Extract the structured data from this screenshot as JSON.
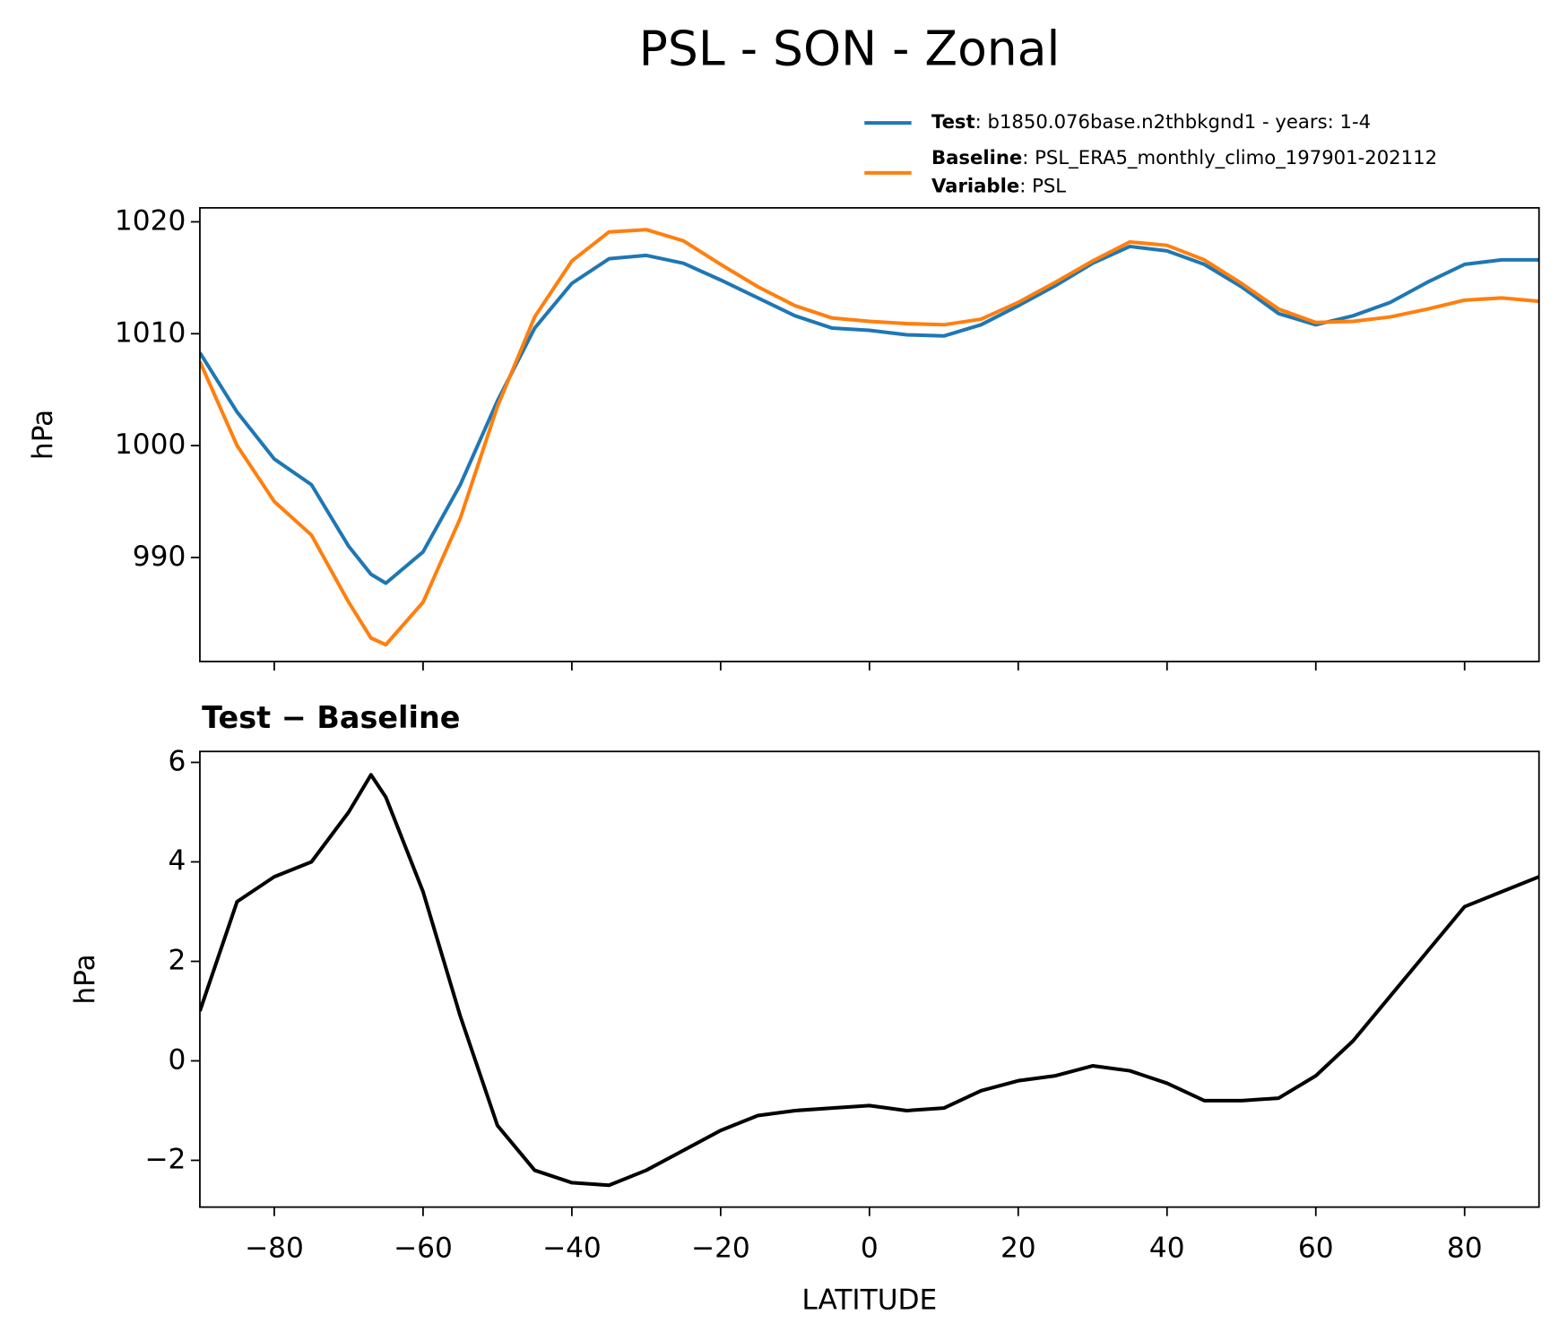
{
  "chart_data": [
    {
      "type": "line",
      "title": "PSL - SON - Zonal",
      "ylabel": "hPa",
      "legend_variable": {
        "name": "Variable",
        "description": ": PSL"
      },
      "x": [
        -90,
        -85,
        -80,
        -75,
        -70,
        -67,
        -65,
        -60,
        -55,
        -50,
        -45,
        -40,
        -35,
        -30,
        -25,
        -20,
        -15,
        -10,
        -5,
        0,
        5,
        10,
        15,
        20,
        25,
        30,
        35,
        40,
        45,
        50,
        55,
        60,
        65,
        70,
        75,
        80,
        85,
        90
      ],
      "series": [
        {
          "name": "Test",
          "description": ": b1850.076base.n2thbkgnd1 - years: 1-4",
          "color": "#1f77b4",
          "values": [
            1008.3,
            1003,
            998.8,
            996.5,
            991,
            988.5,
            987.7,
            990.5,
            996.5,
            1004,
            1010.5,
            1014.5,
            1016.7,
            1017,
            1016.3,
            1014.8,
            1013.2,
            1011.6,
            1010.5,
            1010.3,
            1009.9,
            1009.8,
            1010.8,
            1012.5,
            1014.3,
            1016.3,
            1017.8,
            1017.4,
            1016.2,
            1014.2,
            1011.8,
            1010.8,
            1011.6,
            1012.8,
            1014.6,
            1016.2,
            1016.6,
            1016.6
          ]
        },
        {
          "name": "Baseline",
          "description": ": PSL_ERA5_monthly_climo_197901-202112",
          "color": "#ff7f0e",
          "values": [
            1007.5,
            1000,
            995,
            992,
            986,
            982.8,
            982.2,
            986,
            993.5,
            1003.5,
            1011.5,
            1016.5,
            1019.1,
            1019.3,
            1018.3,
            1016.2,
            1014.2,
            1012.5,
            1011.4,
            1011.1,
            1010.9,
            1010.8,
            1011.3,
            1012.8,
            1014.6,
            1016.5,
            1018.2,
            1017.9,
            1016.6,
            1014.5,
            1012.2,
            1011,
            1011.1,
            1011.5,
            1012.2,
            1013,
            1013.2,
            1012.9
          ]
        }
      ],
      "xlim": [
        -90,
        90
      ],
      "xticks": [
        {
          "value": -80,
          "label": "−80"
        },
        {
          "value": -60,
          "label": "−60"
        },
        {
          "value": -40,
          "label": "−40"
        },
        {
          "value": -20,
          "label": "−20"
        },
        0,
        20,
        40,
        60,
        80
      ],
      "ylim": [
        980.7,
        1021.25
      ],
      "yticks": [
        990,
        1000,
        1010,
        1020
      ]
    },
    {
      "type": "line",
      "title": "Test − Baseline",
      "ylabel": "hPa",
      "xlabel": "LATITUDE",
      "x": [
        -90,
        -85,
        -80,
        -75,
        -70,
        -67,
        -65,
        -60,
        -55,
        -50,
        -45,
        -40,
        -35,
        -30,
        -25,
        -20,
        -15,
        -10,
        -5,
        0,
        5,
        10,
        15,
        20,
        25,
        30,
        35,
        40,
        45,
        50,
        55,
        60,
        65,
        70,
        75,
        80,
        85,
        90
      ],
      "series": [
        {
          "color": "#000000",
          "values": [
            1.0,
            3.2,
            3.7,
            4.0,
            5.0,
            5.75,
            5.3,
            3.4,
            0.9,
            -1.3,
            -2.2,
            -2.45,
            -2.5,
            -2.2,
            -1.8,
            -1.4,
            -1.1,
            -1.0,
            -0.95,
            -0.9,
            -1.0,
            -0.95,
            -0.6,
            -0.4,
            -0.3,
            -0.1,
            -0.2,
            -0.45,
            -0.8,
            -0.8,
            -0.75,
            -0.3,
            0.4,
            1.3,
            2.2,
            3.1,
            3.4,
            3.7
          ]
        }
      ],
      "xlim": [
        -90,
        90
      ],
      "xticks": [
        {
          "value": -80,
          "label": "−80"
        },
        {
          "value": -60,
          "label": "−60"
        },
        {
          "value": -40,
          "label": "−40"
        },
        {
          "value": -20,
          "label": "−20"
        },
        0,
        20,
        40,
        60,
        80
      ],
      "ylim": [
        -2.94,
        6.22
      ],
      "yticks": [
        {
          "value": -2,
          "label": "−2"
        },
        0,
        2,
        4,
        6
      ]
    }
  ]
}
